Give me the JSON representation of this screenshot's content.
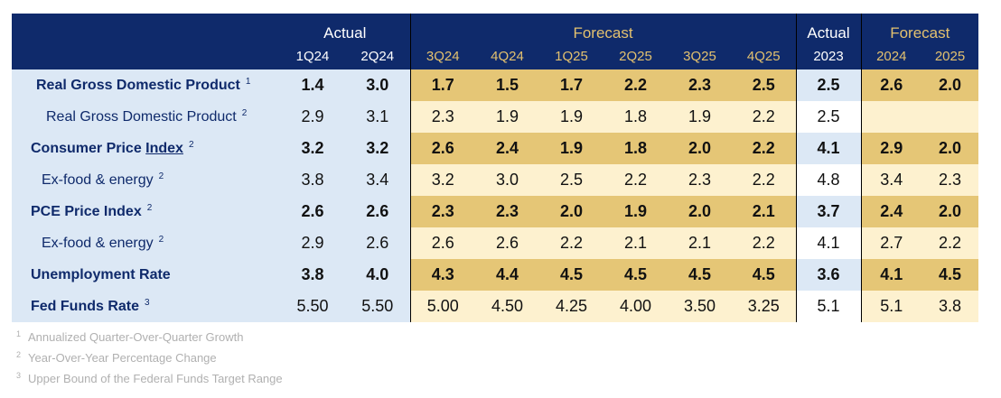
{
  "chart_data": {
    "type": "table",
    "header_groups": {
      "actual_q": "Actual",
      "forecast_q": "Forecast",
      "actual_y": "Actual",
      "forecast_y": "Forecast"
    },
    "columns": [
      "1Q24",
      "2Q24",
      "3Q24",
      "4Q24",
      "1Q25",
      "2Q25",
      "3Q25",
      "4Q25",
      "2023",
      "2024",
      "2025"
    ],
    "rows": [
      {
        "label": "Real Gross Domestic Product",
        "sup": "1",
        "bold": true,
        "values": [
          "1.4",
          "3.0",
          "1.7",
          "1.5",
          "1.7",
          "2.2",
          "2.3",
          "2.5",
          "2.5",
          "2.6",
          "2.0"
        ]
      },
      {
        "label": "Real Gross Domestic Product",
        "sup": "2",
        "bold": false,
        "values": [
          "2.9",
          "3.1",
          "2.3",
          "1.9",
          "1.9",
          "1.8",
          "1.9",
          "2.2",
          "2.5",
          "",
          ""
        ]
      },
      {
        "label": "Consumer Price Index",
        "sup": "2",
        "bold": true,
        "values": [
          "3.2",
          "3.2",
          "2.6",
          "2.4",
          "1.9",
          "1.8",
          "2.0",
          "2.2",
          "4.1",
          "2.9",
          "2.0"
        ]
      },
      {
        "label": "Ex-food & energy",
        "sup": "2",
        "bold": false,
        "values": [
          "3.8",
          "3.4",
          "3.2",
          "3.0",
          "2.5",
          "2.2",
          "2.3",
          "2.2",
          "4.8",
          "3.4",
          "2.3"
        ]
      },
      {
        "label": "PCE Price Index",
        "sup": "2",
        "bold": true,
        "values": [
          "2.6",
          "2.6",
          "2.3",
          "2.3",
          "2.0",
          "1.9",
          "2.0",
          "2.1",
          "3.7",
          "2.4",
          "2.0"
        ]
      },
      {
        "label": "Ex-food & energy",
        "sup": "2",
        "bold": false,
        "values": [
          "2.9",
          "2.6",
          "2.6",
          "2.6",
          "2.2",
          "2.1",
          "2.1",
          "2.2",
          "4.1",
          "2.7",
          "2.2"
        ]
      },
      {
        "label": "Unemployment Rate",
        "sup": "",
        "bold": true,
        "values": [
          "3.8",
          "4.0",
          "4.3",
          "4.4",
          "4.5",
          "4.5",
          "4.5",
          "4.5",
          "3.6",
          "4.1",
          "4.5"
        ]
      },
      {
        "label": "Fed Funds Rate",
        "sup": "3",
        "bold": false,
        "label_bold": true,
        "values": [
          "5.50",
          "5.50",
          "5.00",
          "4.50",
          "4.25",
          "4.00",
          "3.50",
          "3.25",
          "5.1",
          "5.1",
          "3.8"
        ]
      }
    ],
    "footnotes": [
      {
        "mark": "1",
        "text": "Annualized Quarter-Over-Quarter Growth"
      },
      {
        "mark": "2",
        "text": "Year-Over-Year Percentage Change"
      },
      {
        "mark": "3",
        "text": "Upper Bound of the Federal Funds Target Range"
      }
    ]
  },
  "colors": {
    "header_bg": "#0f2a6b",
    "header_actual_text": "#ffffff",
    "header_forecast_text": "#e3c16f",
    "actual_cell_bg": "#dce8f5",
    "forecast_bold_bg": "#e5c676",
    "forecast_light_bg": "#fdf1cf",
    "label_text": "#0f2a6b",
    "footnote_text": "#b0b0b0"
  }
}
